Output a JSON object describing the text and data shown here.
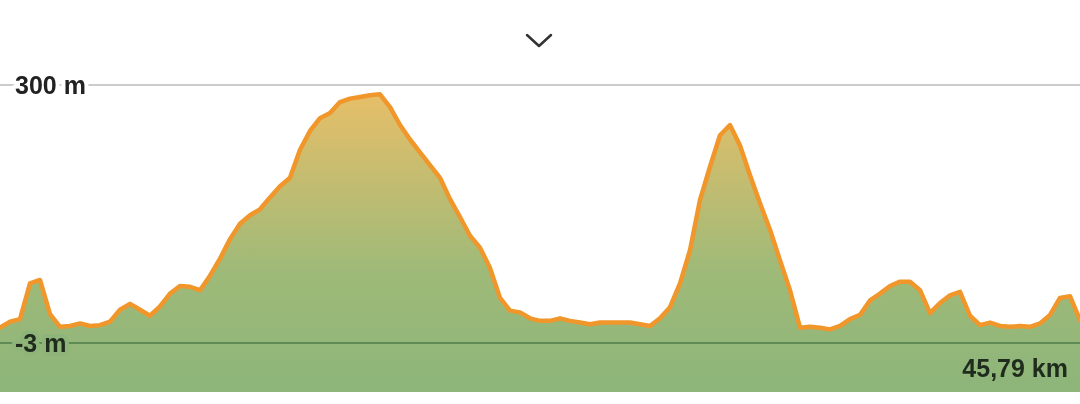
{
  "chart_data": {
    "type": "area",
    "categories": [
      null,
      null,
      null,
      null,
      null,
      null,
      null,
      null,
      null,
      null,
      null,
      null,
      null,
      null,
      null,
      null,
      null,
      null,
      null,
      null,
      null,
      null,
      null,
      null,
      null,
      null,
      null,
      null,
      null,
      null,
      null,
      null,
      null,
      null,
      null,
      null,
      null,
      null,
      null,
      null,
      null,
      null,
      null,
      null,
      null,
      null,
      null,
      null,
      null,
      null,
      null,
      null,
      null,
      null,
      null,
      null,
      null,
      null,
      null,
      null,
      null,
      null,
      null,
      null,
      null,
      null,
      null,
      null,
      null,
      null,
      null,
      null,
      null,
      null,
      null,
      null,
      null,
      null,
      null,
      null,
      null,
      null,
      null,
      null,
      null,
      null,
      null,
      null,
      null,
      null,
      null,
      null,
      null,
      null,
      null,
      null,
      null,
      null,
      null,
      null,
      null,
      null,
      null,
      null,
      null,
      null,
      null,
      null,
      null
    ],
    "series": [
      {
        "color": "#f0962a",
        "values": [
          15,
          22,
          25,
          67,
          71,
          31,
          16,
          17,
          20,
          17,
          18,
          22,
          36,
          43,
          36,
          29,
          40,
          55,
          64,
          63,
          59,
          76,
          96,
          119,
          137,
          147,
          154,
          168,
          181,
          191,
          224,
          246,
          261,
          267,
          280,
          284,
          286,
          288,
          289,
          274,
          253,
          236,
          221,
          206,
          191,
          166,
          145,
          123,
          109,
          85,
          50,
          35,
          33,
          26,
          23,
          23,
          26,
          23,
          21,
          19,
          21,
          21,
          21,
          21,
          19,
          17,
          26,
          39,
          67,
          106,
          165,
          204,
          241,
          253,
          229,
          194,
          161,
          130,
          94,
          59,
          15,
          16,
          15,
          13,
          17,
          25,
          30,
          47,
          55,
          64,
          69,
          69,
          59,
          32,
          44,
          53,
          57,
          29,
          18,
          21,
          17,
          16,
          17,
          16,
          20,
          30,
          50,
          52,
          24
        ]
      }
    ],
    "annotations": [
      "45,79 km"
    ],
    "ylim": [
      -3,
      300
    ],
    "yticks": [
      {
        "value": 300,
        "label": "300 m"
      },
      {
        "value": -3,
        "label": "-3 m"
      }
    ],
    "grid": "y"
  }
}
